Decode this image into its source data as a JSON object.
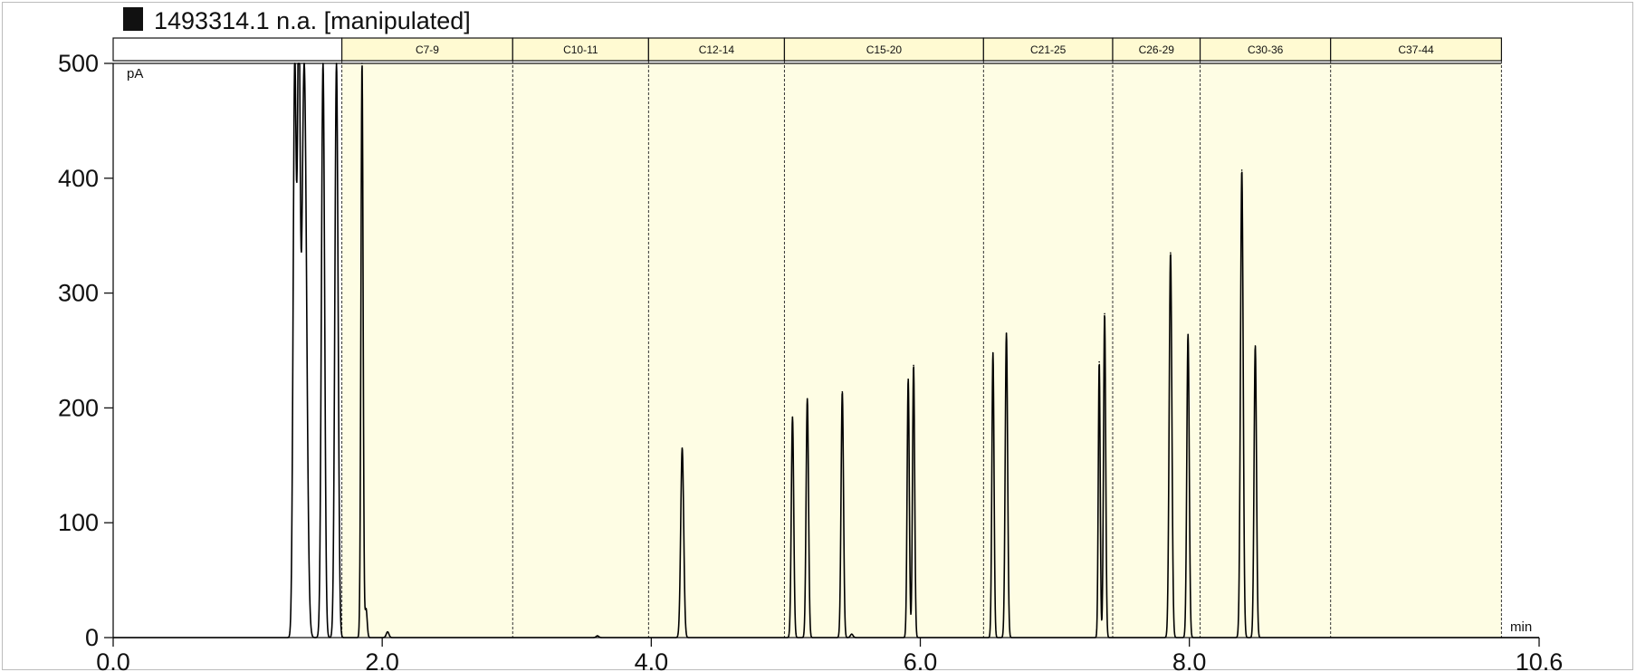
{
  "chart_data": {
    "type": "line",
    "title": "1493314.1 n.a.  [manipulated]",
    "ylabel": "pA",
    "xlabel": "min",
    "xlim": [
      0.0,
      10.6
    ],
    "ylim": [
      0,
      500
    ],
    "x_tick_labels": [
      "0.0",
      "2.0",
      "4.0",
      "6.0",
      "8.0",
      "10.6"
    ],
    "x_ticks": [
      0.0,
      2.0,
      4.0,
      6.0,
      8.0,
      10.6
    ],
    "y_ticks": [
      0,
      100,
      200,
      300,
      400,
      500
    ],
    "grid": false,
    "shaded_start": 1.7,
    "colors": {
      "band": "#fefde4",
      "trace": "#000000",
      "band_header": "#fffad2"
    },
    "bands": [
      {
        "label": "C7-9",
        "start": 1.7,
        "end": 2.97
      },
      {
        "label": "C10-11",
        "start": 2.97,
        "end": 3.98
      },
      {
        "label": "C12-14",
        "start": 3.98,
        "end": 4.99
      },
      {
        "label": "C15-20",
        "start": 4.99,
        "end": 6.47
      },
      {
        "label": "C21-25",
        "start": 6.47,
        "end": 7.43
      },
      {
        "label": "C26-29",
        "start": 7.43,
        "end": 8.08
      },
      {
        "label": "C30-36",
        "start": 8.08,
        "end": 9.05
      },
      {
        "label": "C37-44",
        "start": 9.05,
        "end": 10.32
      }
    ],
    "series": [
      {
        "peaks": [
          {
            "x": 1.35,
            "height": 500,
            "width": 0.012
          },
          {
            "x": 1.38,
            "height": 500,
            "width": 0.01
          },
          {
            "x": 1.42,
            "height": 500,
            "width": 0.018
          },
          {
            "x": 1.56,
            "height": 500,
            "width": 0.012
          },
          {
            "x": 1.66,
            "height": 500,
            "width": 0.012
          },
          {
            "x": 1.85,
            "height": 500,
            "width": 0.008
          },
          {
            "x": 1.88,
            "height": 25,
            "width": 0.008
          },
          {
            "x": 2.04,
            "height": 5,
            "width": 0.01
          },
          {
            "x": 3.6,
            "height": 1.5,
            "width": 0.01
          },
          {
            "x": 4.23,
            "height": 165,
            "width": 0.011
          },
          {
            "x": 5.05,
            "height": 192,
            "width": 0.009
          },
          {
            "x": 5.16,
            "height": 208,
            "width": 0.009
          },
          {
            "x": 5.42,
            "height": 214,
            "width": 0.009
          },
          {
            "x": 5.49,
            "height": 3,
            "width": 0.01
          },
          {
            "x": 5.91,
            "height": 225,
            "width": 0.008
          },
          {
            "x": 5.95,
            "height": 237,
            "width": 0.008
          },
          {
            "x": 6.54,
            "height": 248,
            "width": 0.008
          },
          {
            "x": 6.64,
            "height": 265,
            "width": 0.009
          },
          {
            "x": 7.33,
            "height": 240,
            "width": 0.007
          },
          {
            "x": 7.37,
            "height": 282,
            "width": 0.008
          },
          {
            "x": 7.86,
            "height": 335,
            "width": 0.01
          },
          {
            "x": 7.99,
            "height": 264,
            "width": 0.009
          },
          {
            "x": 8.39,
            "height": 407,
            "width": 0.01
          },
          {
            "x": 8.49,
            "height": 254,
            "width": 0.009
          }
        ]
      }
    ]
  }
}
